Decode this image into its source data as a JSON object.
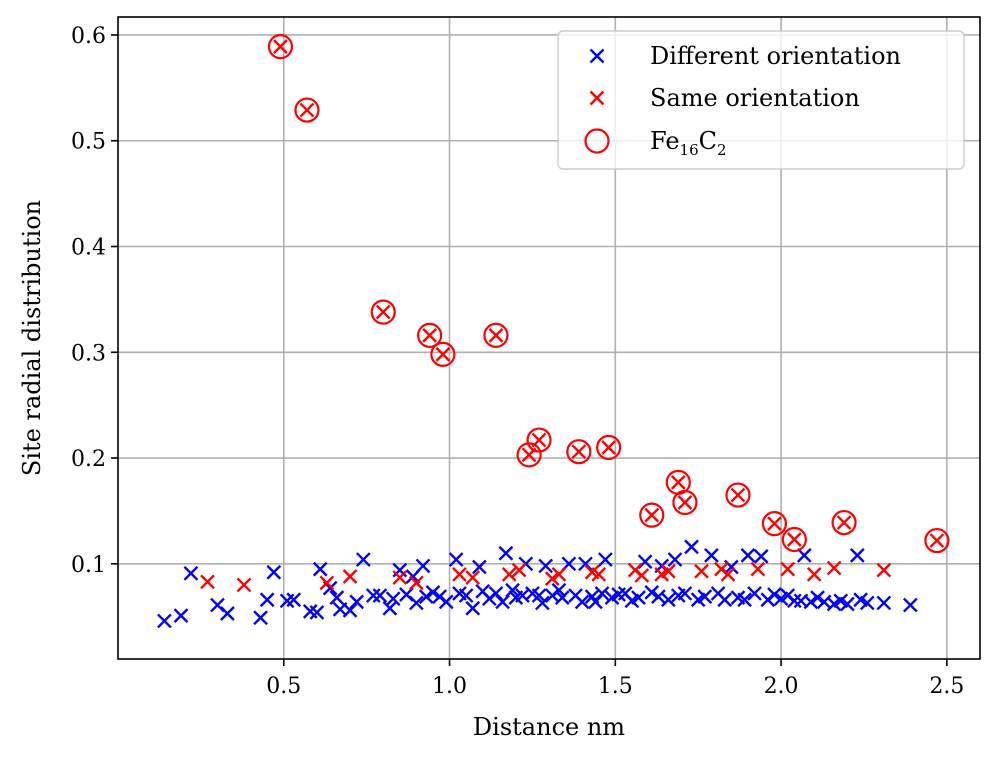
{
  "chart_data": {
    "type": "scatter",
    "title": "",
    "xlabel": "Distance nm",
    "ylabel": "Site radial distribution",
    "xlim": [
      0.0,
      2.6
    ],
    "ylim": [
      0.01,
      0.617
    ],
    "grid": true,
    "legend_position": "top-right",
    "xticks": [
      0.5,
      1.0,
      1.5,
      2.0,
      2.5
    ],
    "xtick_labels": [
      "0.5",
      "1.0",
      "1.5",
      "2.0",
      "2.5"
    ],
    "yticks": [
      0.1,
      0.2,
      0.3,
      0.4,
      0.5,
      0.6
    ],
    "ytick_labels": [
      "0.1",
      "0.2",
      "0.3",
      "0.4",
      "0.5",
      "0.6"
    ],
    "legend": [
      {
        "label": "Different orientation",
        "marker": "x",
        "color": "#0000ff"
      },
      {
        "label": "Same orientation",
        "marker": "x",
        "color": "#ff0000"
      },
      {
        "label_main": "Fe",
        "label_sub1": "16",
        "label_mid": "C",
        "label_sub2": "2",
        "marker": "circle",
        "color": "#ff0000"
      }
    ],
    "series": [
      {
        "name": "Different orientation",
        "marker": "x",
        "color": "#0000ff",
        "points": [
          [
            0.14,
            0.046
          ],
          [
            0.19,
            0.051
          ],
          [
            0.22,
            0.091
          ],
          [
            0.3,
            0.061
          ],
          [
            0.33,
            0.053
          ],
          [
            0.43,
            0.049
          ],
          [
            0.45,
            0.066
          ],
          [
            0.47,
            0.092
          ],
          [
            0.51,
            0.065
          ],
          [
            0.53,
            0.066
          ],
          [
            0.58,
            0.055
          ],
          [
            0.6,
            0.054
          ],
          [
            0.61,
            0.095
          ],
          [
            0.64,
            0.077
          ],
          [
            0.66,
            0.068
          ],
          [
            0.67,
            0.057
          ],
          [
            0.7,
            0.056
          ],
          [
            0.72,
            0.064
          ],
          [
            0.74,
            0.104
          ],
          [
            0.77,
            0.07
          ],
          [
            0.79,
            0.07
          ],
          [
            0.82,
            0.058
          ],
          [
            0.83,
            0.067
          ],
          [
            0.85,
            0.094
          ],
          [
            0.87,
            0.071
          ],
          [
            0.89,
            0.088
          ],
          [
            0.9,
            0.063
          ],
          [
            0.92,
            0.098
          ],
          [
            0.93,
            0.069
          ],
          [
            0.95,
            0.073
          ],
          [
            0.97,
            0.069
          ],
          [
            0.99,
            0.064
          ],
          [
            1.02,
            0.104
          ],
          [
            1.03,
            0.072
          ],
          [
            1.05,
            0.07
          ],
          [
            1.07,
            0.058
          ],
          [
            1.09,
            0.097
          ],
          [
            1.1,
            0.074
          ],
          [
            1.12,
            0.067
          ],
          [
            1.14,
            0.072
          ],
          [
            1.16,
            0.064
          ],
          [
            1.17,
            0.11
          ],
          [
            1.19,
            0.075
          ],
          [
            1.2,
            0.068
          ],
          [
            1.22,
            0.07
          ],
          [
            1.23,
            0.1
          ],
          [
            1.25,
            0.072
          ],
          [
            1.27,
            0.07
          ],
          [
            1.28,
            0.063
          ],
          [
            1.29,
            0.098
          ],
          [
            1.31,
            0.07
          ],
          [
            1.33,
            0.075
          ],
          [
            1.34,
            0.068
          ],
          [
            1.36,
            0.1
          ],
          [
            1.38,
            0.07
          ],
          [
            1.4,
            0.064
          ],
          [
            1.41,
            0.1
          ],
          [
            1.43,
            0.069
          ],
          [
            1.44,
            0.064
          ],
          [
            1.46,
            0.072
          ],
          [
            1.47,
            0.104
          ],
          [
            1.49,
            0.068
          ],
          [
            1.51,
            0.071
          ],
          [
            1.53,
            0.072
          ],
          [
            1.55,
            0.065
          ],
          [
            1.57,
            0.068
          ],
          [
            1.59,
            0.102
          ],
          [
            1.61,
            0.073
          ],
          [
            1.63,
            0.069
          ],
          [
            1.64,
            0.098
          ],
          [
            1.66,
            0.066
          ],
          [
            1.68,
            0.104
          ],
          [
            1.69,
            0.07
          ],
          [
            1.71,
            0.072
          ],
          [
            1.73,
            0.116
          ],
          [
            1.75,
            0.066
          ],
          [
            1.77,
            0.069
          ],
          [
            1.79,
            0.108
          ],
          [
            1.81,
            0.072
          ],
          [
            1.83,
            0.066
          ],
          [
            1.85,
            0.097
          ],
          [
            1.87,
            0.068
          ],
          [
            1.89,
            0.066
          ],
          [
            1.9,
            0.108
          ],
          [
            1.92,
            0.072
          ],
          [
            1.94,
            0.107
          ],
          [
            1.96,
            0.066
          ],
          [
            1.98,
            0.071
          ],
          [
            2.0,
            0.067
          ],
          [
            2.02,
            0.07
          ],
          [
            2.04,
            0.065
          ],
          [
            2.06,
            0.065
          ],
          [
            2.07,
            0.108
          ],
          [
            2.09,
            0.064
          ],
          [
            2.11,
            0.068
          ],
          [
            2.13,
            0.064
          ],
          [
            2.16,
            0.062
          ],
          [
            2.18,
            0.065
          ],
          [
            2.2,
            0.062
          ],
          [
            2.23,
            0.108
          ],
          [
            2.24,
            0.066
          ],
          [
            2.26,
            0.063
          ],
          [
            2.31,
            0.063
          ],
          [
            2.39,
            0.061
          ]
        ]
      },
      {
        "name": "Same orientation",
        "marker": "x",
        "color": "#ff0000",
        "points": [
          [
            0.27,
            0.083
          ],
          [
            0.38,
            0.08
          ],
          [
            0.63,
            0.082
          ],
          [
            0.7,
            0.088
          ],
          [
            0.85,
            0.087
          ],
          [
            0.9,
            0.082
          ],
          [
            1.03,
            0.09
          ],
          [
            1.07,
            0.087
          ],
          [
            1.18,
            0.09
          ],
          [
            1.21,
            0.094
          ],
          [
            1.31,
            0.086
          ],
          [
            1.33,
            0.09
          ],
          [
            1.43,
            0.092
          ],
          [
            1.45,
            0.09
          ],
          [
            1.56,
            0.094
          ],
          [
            1.58,
            0.089
          ],
          [
            1.64,
            0.09
          ],
          [
            1.66,
            0.093
          ],
          [
            1.76,
            0.093
          ],
          [
            1.82,
            0.095
          ],
          [
            1.84,
            0.09
          ],
          [
            1.93,
            0.095
          ],
          [
            2.02,
            0.095
          ],
          [
            2.1,
            0.09
          ],
          [
            2.16,
            0.096
          ],
          [
            2.31,
            0.094
          ],
          [
            0.49,
            0.589
          ],
          [
            0.57,
            0.529
          ],
          [
            0.8,
            0.338
          ],
          [
            0.94,
            0.316
          ],
          [
            0.98,
            0.298
          ],
          [
            1.14,
            0.316
          ],
          [
            1.24,
            0.203
          ],
          [
            1.27,
            0.217
          ],
          [
            1.39,
            0.206
          ],
          [
            1.48,
            0.21
          ],
          [
            1.61,
            0.146
          ],
          [
            1.69,
            0.177
          ],
          [
            1.71,
            0.158
          ],
          [
            1.87,
            0.165
          ],
          [
            1.98,
            0.138
          ],
          [
            2.04,
            0.123
          ],
          [
            2.19,
            0.139
          ],
          [
            2.47,
            0.122
          ]
        ]
      },
      {
        "name": "Fe16C2",
        "marker": "circle",
        "color": "#ff0000",
        "points": [
          [
            0.49,
            0.589
          ],
          [
            0.57,
            0.529
          ],
          [
            0.8,
            0.338
          ],
          [
            0.94,
            0.316
          ],
          [
            0.98,
            0.298
          ],
          [
            1.14,
            0.316
          ],
          [
            1.24,
            0.203
          ],
          [
            1.27,
            0.217
          ],
          [
            1.39,
            0.206
          ],
          [
            1.48,
            0.21
          ],
          [
            1.61,
            0.146
          ],
          [
            1.69,
            0.177
          ],
          [
            1.71,
            0.158
          ],
          [
            1.87,
            0.165
          ],
          [
            1.98,
            0.138
          ],
          [
            2.04,
            0.123
          ],
          [
            2.19,
            0.139
          ],
          [
            2.47,
            0.122
          ]
        ]
      }
    ]
  }
}
